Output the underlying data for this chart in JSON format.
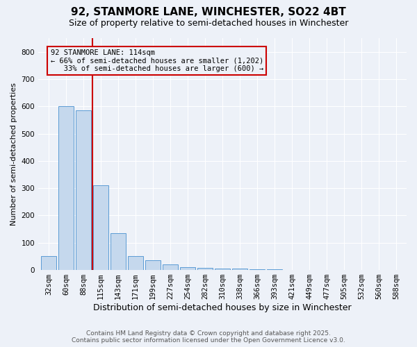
{
  "title": "92, STANMORE LANE, WINCHESTER, SO22 4BT",
  "subtitle": "Size of property relative to semi-detached houses in Winchester",
  "xlabel": "Distribution of semi-detached houses by size in Winchester",
  "ylabel": "Number of semi-detached properties",
  "categories": [
    "32sqm",
    "60sqm",
    "88sqm",
    "115sqm",
    "143sqm",
    "171sqm",
    "199sqm",
    "227sqm",
    "254sqm",
    "282sqm",
    "310sqm",
    "338sqm",
    "366sqm",
    "393sqm",
    "421sqm",
    "449sqm",
    "477sqm",
    "505sqm",
    "532sqm",
    "560sqm",
    "588sqm"
  ],
  "values": [
    50,
    600,
    585,
    310,
    135,
    50,
    35,
    20,
    10,
    7,
    5,
    5,
    3,
    2,
    1,
    1,
    0,
    0,
    0,
    0,
    0
  ],
  "bar_color": "#c5d8ed",
  "bar_edge_color": "#5b9bd5",
  "red_line_x": 2.5,
  "property_label": "92 STANMORE LANE: 114sqm",
  "smaller_pct": "66%",
  "smaller_count": "1,202",
  "larger_pct": "33%",
  "larger_count": "600",
  "red_color": "#cc0000",
  "background_color": "#edf1f8",
  "grid_color": "#ffffff",
  "footer_line1": "Contains HM Land Registry data © Crown copyright and database right 2025.",
  "footer_line2": "Contains public sector information licensed under the Open Government Licence v3.0.",
  "ylim": [
    0,
    850
  ],
  "title_fontsize": 11,
  "subtitle_fontsize": 9,
  "ylabel_fontsize": 8,
  "xlabel_fontsize": 9,
  "tick_fontsize": 7.5,
  "footer_fontsize": 6.5
}
